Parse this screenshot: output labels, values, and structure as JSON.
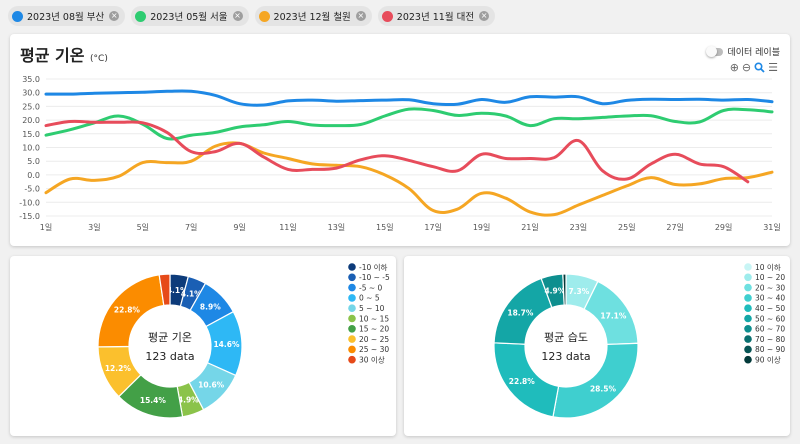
{
  "filters": [
    {
      "label": "2023년 08월 부산",
      "color": "#1e88e5"
    },
    {
      "label": "2023년 05월 서울",
      "color": "#2ecc71"
    },
    {
      "label": "2023년 12월 철원",
      "color": "#f5a623"
    },
    {
      "label": "2023년 11월 대전",
      "color": "#e74c5b"
    }
  ],
  "line_card": {
    "title": "평균 기온",
    "unit": "(°C)",
    "toggle_label": "데이터 레이블",
    "tools": {
      "zoom_in": "⊕",
      "zoom_out": "⊖",
      "search": "🔍",
      "menu": "☰"
    }
  },
  "chart_data": [
    {
      "type": "line",
      "title": "평균 기온",
      "ylabel": "°C",
      "ylim": [
        -15,
        35
      ],
      "yticks": [
        "35.0",
        "30.0",
        "25.0",
        "20.0",
        "15.0",
        "10.0",
        "5.0",
        "0.0",
        "-5.0",
        "-10.0",
        "-15.0"
      ],
      "xticks": [
        "1일",
        "3일",
        "5일",
        "7일",
        "9일",
        "11일",
        "13일",
        "15일",
        "17일",
        "19일",
        "21일",
        "23일",
        "25일",
        "27일",
        "29일",
        "31일"
      ],
      "x": [
        1,
        2,
        3,
        4,
        5,
        6,
        7,
        8,
        9,
        10,
        11,
        12,
        13,
        14,
        15,
        16,
        17,
        18,
        19,
        20,
        21,
        22,
        23,
        24,
        25,
        26,
        27,
        28,
        29,
        30,
        31
      ],
      "series": [
        {
          "name": "2023년 08월 부산",
          "color": "#1e88e5",
          "values": [
            29.5,
            29.5,
            29.8,
            30,
            30.2,
            30.5,
            30.5,
            29,
            26,
            25.5,
            27,
            27.3,
            26.9,
            27.1,
            27.3,
            27.4,
            26,
            25.8,
            27.5,
            26.5,
            28.5,
            28.4,
            28.5,
            26,
            27.2,
            27.6,
            27.5,
            27.6,
            27.3,
            27.5,
            26.7
          ]
        },
        {
          "name": "2023년 05월 서울",
          "color": "#2ecc71",
          "values": [
            14.5,
            16.5,
            19,
            21.5,
            18.5,
            13.3,
            14.5,
            15.5,
            17.5,
            18.3,
            19.5,
            18.2,
            18,
            18.4,
            21.5,
            24,
            23.5,
            21.7,
            22.5,
            21.5,
            18,
            20.5,
            20.5,
            21,
            21.5,
            21.6,
            19.5,
            19.3,
            23.5,
            23.8,
            23
          ]
        },
        {
          "name": "2023년 12월 철원",
          "color": "#f5a623",
          "values": [
            -6.5,
            -1.5,
            -2,
            -0.5,
            4.5,
            4.5,
            5,
            10.5,
            11.5,
            8,
            6,
            4,
            3.5,
            3,
            0,
            -5,
            -13,
            -12.5,
            -6.7,
            -8.5,
            -13.5,
            -14.5,
            -11,
            -7.5,
            -4,
            -1,
            -3.5,
            -3.3,
            -1.4,
            -1,
            1
          ]
        },
        {
          "name": "2023년 11월 대전",
          "color": "#e74c5b",
          "values": [
            18,
            19.5,
            19.2,
            19.2,
            19,
            15.5,
            8.5,
            8.5,
            11.5,
            6.5,
            2,
            2,
            2.5,
            5.5,
            7,
            5.3,
            3,
            1.5,
            7.5,
            6,
            6,
            6.3,
            12.5,
            1.5,
            -1.5,
            4,
            7.5,
            4,
            3,
            -2.5,
            null
          ]
        }
      ]
    },
    {
      "type": "pie",
      "title": "평균 기온",
      "center_label": "123 data",
      "legend": [
        "-10 이하",
        "-10 ~ -5",
        "-5 ~ 0",
        "0 ~ 5",
        "5 ~ 10",
        "10 ~ 15",
        "15 ~ 20",
        "20 ~ 25",
        "25 ~ 30",
        "30 이상"
      ],
      "colors": [
        "#0d3b7a",
        "#1a5fb4",
        "#1e88e5",
        "#2eb8f5",
        "#75d6e8",
        "#8bc34a",
        "#43a047",
        "#fbc02d",
        "#fb8c00",
        "#e64a19"
      ],
      "values": [
        4.1,
        4.1,
        8.9,
        14.6,
        10.6,
        4.9,
        15.4,
        12.2,
        22.8,
        2.4
      ],
      "labels": [
        "4.1%",
        "4.1%",
        "8.9%",
        "14.6%",
        "10.6%",
        "4.9%",
        "15.4%",
        "12.2%",
        "22.8%",
        ""
      ]
    },
    {
      "type": "pie",
      "title": "평균 습도",
      "center_label": "123 data",
      "legend": [
        "10 이하",
        "10 ~ 20",
        "20 ~ 30",
        "30 ~ 40",
        "40 ~ 50",
        "50 ~ 60",
        "60 ~ 70",
        "70 ~ 80",
        "80 ~ 90",
        "90 이상"
      ],
      "colors": [
        "#c8f5f5",
        "#9eecec",
        "#6ee0e0",
        "#3fcfcf",
        "#1fbcbc",
        "#14a6a6",
        "#0e8f8f",
        "#0a7070",
        "#075555",
        "#033a3a"
      ],
      "values": [
        0,
        7.3,
        17.1,
        28.5,
        22.8,
        18.7,
        4.9,
        0,
        0,
        0.7
      ],
      "labels": [
        "",
        "7.3%",
        "17.1%",
        "28.5%",
        "22.8%",
        "18.7%",
        "4.9%",
        "",
        "",
        ""
      ]
    }
  ]
}
